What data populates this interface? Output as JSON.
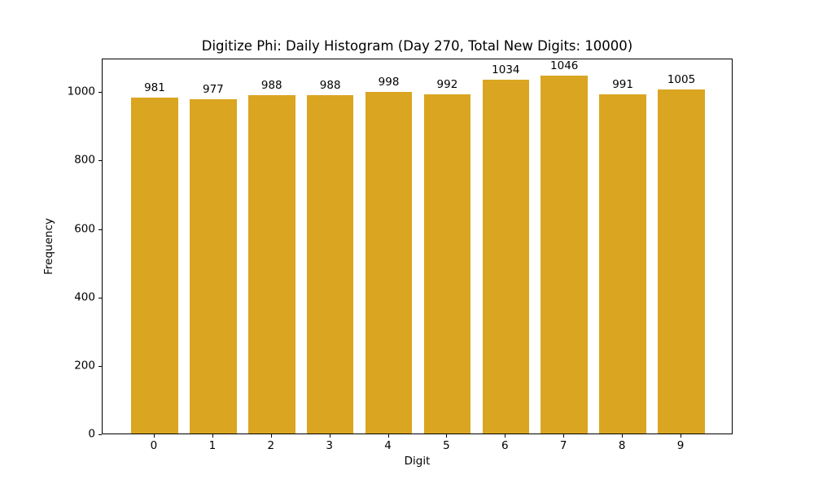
{
  "chart_data": {
    "type": "bar",
    "title": "Digitize Phi: Daily Histogram (Day 270, Total New Digits: 10000)",
    "xlabel": "Digit",
    "ylabel": "Frequency",
    "categories": [
      "0",
      "1",
      "2",
      "3",
      "4",
      "5",
      "6",
      "7",
      "8",
      "9"
    ],
    "values": [
      981,
      977,
      988,
      988,
      998,
      992,
      1034,
      1046,
      991,
      1005
    ],
    "bar_value_labels": [
      "981",
      "977",
      "988",
      "988",
      "998",
      "992",
      "1034",
      "1046",
      "991",
      "1005"
    ],
    "yticks": [
      0,
      200,
      400,
      600,
      800,
      1000
    ],
    "ytick_labels": [
      "0",
      "200",
      "400",
      "600",
      "800",
      "1000"
    ],
    "ylim": [
      0,
      1098.3
    ],
    "xlim": [
      -0.89,
      9.89
    ],
    "bar_width_units": 0.8,
    "bar_color": "#DAA520",
    "spine_color": "#000000",
    "grid": false,
    "legend": null
  }
}
